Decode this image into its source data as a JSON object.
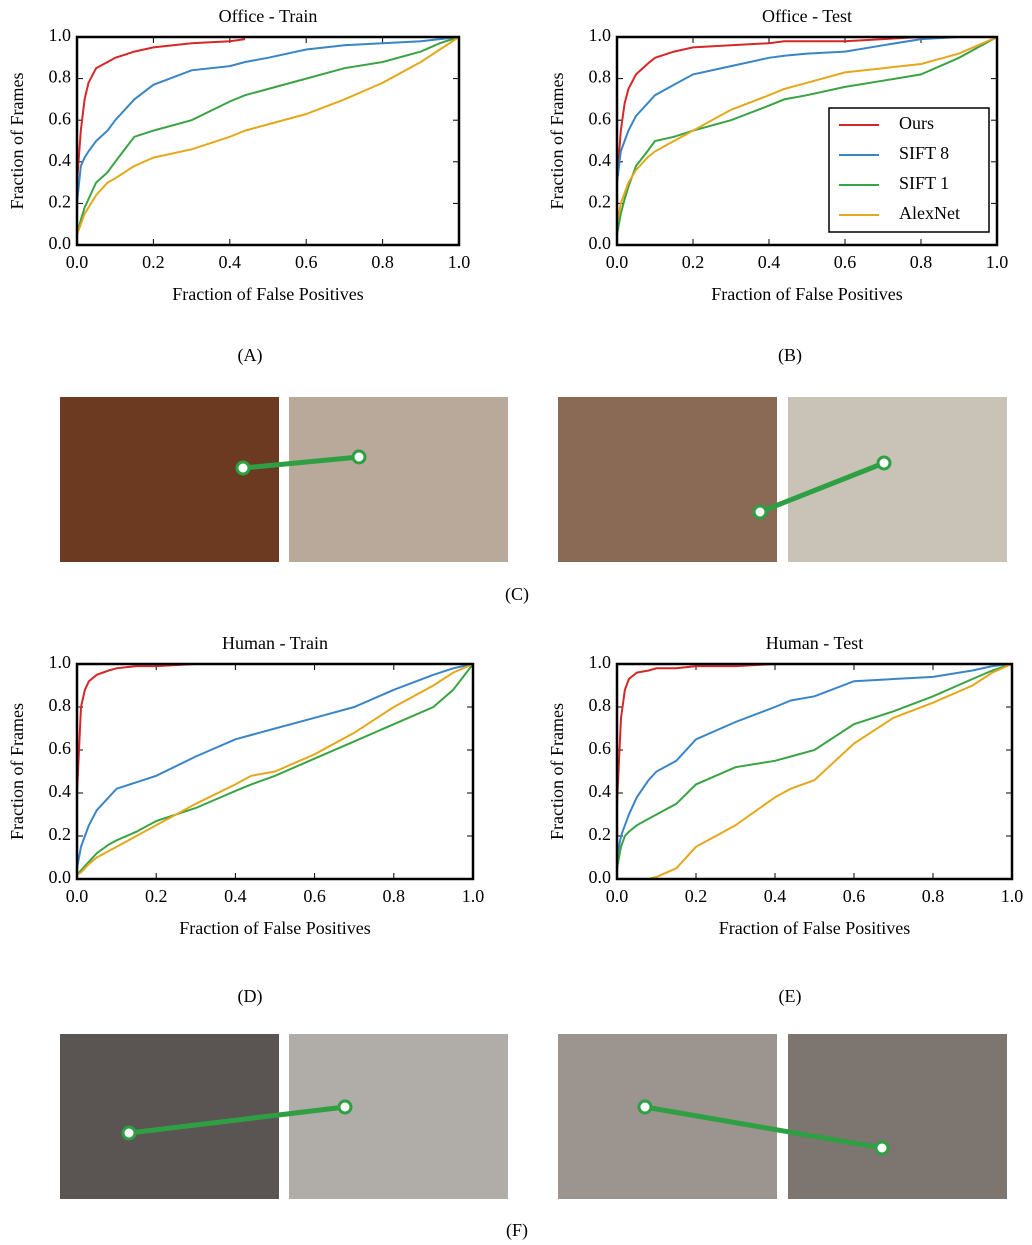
{
  "chart_data": [
    {
      "type": "line",
      "title": "Office - Train",
      "xlabel": "Fraction of False Positives",
      "ylabel": "Fraction of Frames",
      "x": [
        0,
        0.01,
        0.02,
        0.03,
        0.05,
        0.08,
        0.1,
        0.15,
        0.2,
        0.3,
        0.4,
        0.44,
        0.5,
        0.6,
        0.7,
        0.8,
        0.9,
        0.95,
        1.0
      ],
      "series": [
        {
          "color": "#d62728",
          "values": [
            0.3,
            0.55,
            0.7,
            0.78,
            0.85,
            0.88,
            0.9,
            0.93,
            0.95,
            0.97,
            0.98,
            0.99,
            null,
            null,
            null,
            null,
            null,
            null,
            null
          ]
        },
        {
          "color": "#3a85c6",
          "values": [
            0.2,
            0.38,
            0.42,
            0.45,
            0.5,
            0.55,
            0.6,
            0.7,
            0.77,
            0.84,
            0.86,
            0.88,
            0.9,
            0.94,
            0.96,
            0.97,
            0.98,
            0.99,
            1.0
          ]
        },
        {
          "color": "#3aa343",
          "values": [
            0.05,
            0.12,
            0.18,
            0.22,
            0.3,
            0.35,
            0.4,
            0.52,
            0.55,
            0.6,
            0.69,
            0.72,
            0.75,
            0.8,
            0.85,
            0.88,
            0.93,
            0.97,
            1.0
          ]
        },
        {
          "color": "#e3a81c",
          "values": [
            0.05,
            0.1,
            0.15,
            0.18,
            0.24,
            0.3,
            0.32,
            0.38,
            0.42,
            0.46,
            0.52,
            0.55,
            0.58,
            0.63,
            0.7,
            0.78,
            0.88,
            0.94,
            1.0
          ]
        }
      ],
      "xlim": [
        0,
        1
      ],
      "ylim": [
        0,
        1
      ],
      "xticks": [
        {
          "value": 0,
          "label": "0.0"
        },
        {
          "value": 0.2,
          "label": "0.2"
        },
        {
          "value": 0.4,
          "label": "0.4"
        },
        {
          "value": 0.6,
          "label": "0.6"
        },
        {
          "value": 0.8,
          "label": "0.8"
        },
        {
          "value": 1,
          "label": "1.0"
        }
      ],
      "yticks": [
        {
          "value": 0,
          "label": "0.0"
        },
        {
          "value": 0.2,
          "label": "0.2"
        },
        {
          "value": 0.4,
          "label": "0.4"
        },
        {
          "value": 0.6,
          "label": "0.6"
        },
        {
          "value": 0.8,
          "label": "0.8"
        },
        {
          "value": 1,
          "label": "1.0"
        }
      ]
    },
    {
      "type": "line",
      "title": "Office - Test",
      "xlabel": "Fraction of False Positives",
      "ylabel": "Fraction of Frames",
      "legend": "lower right",
      "x": [
        0,
        0.01,
        0.02,
        0.03,
        0.05,
        0.08,
        0.1,
        0.15,
        0.2,
        0.3,
        0.4,
        0.44,
        0.5,
        0.6,
        0.7,
        0.8,
        0.9,
        0.95,
        1.0
      ],
      "series": [
        {
          "name": "Ours",
          "color": "#d62728",
          "values": [
            0.3,
            0.55,
            0.68,
            0.75,
            0.82,
            0.87,
            0.9,
            0.93,
            0.95,
            0.96,
            0.97,
            0.98,
            0.98,
            0.98,
            0.99,
            1.0,
            1.0,
            1.0,
            1.0
          ]
        },
        {
          "name": "SIFT 8",
          "color": "#3a85c6",
          "values": [
            0.3,
            0.45,
            0.5,
            0.55,
            0.62,
            0.68,
            0.72,
            0.77,
            0.82,
            0.86,
            0.9,
            0.91,
            0.92,
            0.93,
            0.96,
            0.99,
            1.0,
            1.0,
            1.0
          ]
        },
        {
          "name": "SIFT 1",
          "color": "#3aa343",
          "values": [
            0.05,
            0.15,
            0.22,
            0.28,
            0.38,
            0.45,
            0.5,
            0.52,
            0.55,
            0.6,
            0.67,
            0.7,
            0.72,
            0.76,
            0.79,
            0.82,
            0.9,
            0.95,
            1.0
          ]
        },
        {
          "name": "AlexNet",
          "color": "#e3a81c",
          "values": [
            0.1,
            0.2,
            0.25,
            0.3,
            0.36,
            0.42,
            0.45,
            0.5,
            0.55,
            0.65,
            0.72,
            0.75,
            0.78,
            0.83,
            0.85,
            0.87,
            0.92,
            0.96,
            1.0
          ]
        }
      ],
      "xlim": [
        0,
        1
      ],
      "ylim": [
        0,
        1
      ],
      "xticks": [
        {
          "value": 0,
          "label": "0.0"
        },
        {
          "value": 0.2,
          "label": "0.2"
        },
        {
          "value": 0.4,
          "label": "0.4"
        },
        {
          "value": 0.6,
          "label": "0.6"
        },
        {
          "value": 0.8,
          "label": "0.8"
        },
        {
          "value": 1,
          "label": "1.0"
        }
      ],
      "yticks": [
        {
          "value": 0,
          "label": "0.0"
        },
        {
          "value": 0.2,
          "label": "0.2"
        },
        {
          "value": 0.4,
          "label": "0.4"
        },
        {
          "value": 0.6,
          "label": "0.6"
        },
        {
          "value": 0.8,
          "label": "0.8"
        },
        {
          "value": 1,
          "label": "1.0"
        }
      ]
    },
    {
      "type": "line",
      "title": "Human - Train",
      "xlabel": "Fraction of False Positives",
      "ylabel": "Fraction of Frames",
      "x": [
        0,
        0.01,
        0.02,
        0.03,
        0.05,
        0.08,
        0.1,
        0.15,
        0.2,
        0.3,
        0.4,
        0.44,
        0.5,
        0.6,
        0.7,
        0.8,
        0.9,
        0.95,
        1.0
      ],
      "series": [
        {
          "color": "#d62728",
          "values": [
            0.4,
            0.8,
            0.88,
            0.92,
            0.95,
            0.97,
            0.98,
            0.99,
            0.99,
            1,
            1,
            1,
            1,
            1,
            1,
            1,
            1,
            1,
            1
          ]
        },
        {
          "color": "#3a85c6",
          "values": [
            0.05,
            0.15,
            0.2,
            0.25,
            0.32,
            0.38,
            0.42,
            0.45,
            0.48,
            0.57,
            0.65,
            0.67,
            0.7,
            0.75,
            0.8,
            0.88,
            0.95,
            0.98,
            1.0
          ]
        },
        {
          "color": "#3aa343",
          "values": [
            0.02,
            0.04,
            0.06,
            0.08,
            0.12,
            0.16,
            0.18,
            0.22,
            0.27,
            0.33,
            0.41,
            0.44,
            0.48,
            0.56,
            0.64,
            0.72,
            0.8,
            0.88,
            1.0
          ]
        },
        {
          "color": "#e3a81c",
          "values": [
            0.02,
            0.03,
            0.05,
            0.07,
            0.1,
            0.13,
            0.15,
            0.2,
            0.25,
            0.35,
            0.44,
            0.48,
            0.5,
            0.58,
            0.68,
            0.8,
            0.9,
            0.96,
            1.0
          ]
        }
      ],
      "xlim": [
        0,
        1
      ],
      "ylim": [
        0,
        1
      ],
      "xticks": [
        {
          "value": 0,
          "label": "0.0"
        },
        {
          "value": 0.2,
          "label": "0.2"
        },
        {
          "value": 0.4,
          "label": "0.4"
        },
        {
          "value": 0.6,
          "label": "0.6"
        },
        {
          "value": 0.8,
          "label": "0.8"
        },
        {
          "value": 1,
          "label": "1.0"
        }
      ],
      "yticks": [
        {
          "value": 0,
          "label": "0.0"
        },
        {
          "value": 0.2,
          "label": "0.2"
        },
        {
          "value": 0.4,
          "label": "0.4"
        },
        {
          "value": 0.6,
          "label": "0.6"
        },
        {
          "value": 0.8,
          "label": "0.8"
        },
        {
          "value": 1,
          "label": "1.0"
        }
      ]
    },
    {
      "type": "line",
      "title": "Human - Test",
      "xlabel": "Fraction of False Positives",
      "ylabel": "Fraction of Frames",
      "x": [
        0,
        0.01,
        0.02,
        0.03,
        0.05,
        0.08,
        0.1,
        0.15,
        0.2,
        0.3,
        0.4,
        0.44,
        0.5,
        0.6,
        0.7,
        0.8,
        0.9,
        0.95,
        1.0
      ],
      "series": [
        {
          "color": "#d62728",
          "values": [
            0.35,
            0.75,
            0.88,
            0.93,
            0.96,
            0.97,
            0.98,
            0.98,
            0.99,
            0.99,
            1,
            1,
            1,
            1,
            1,
            1,
            1,
            1,
            1
          ]
        },
        {
          "color": "#3a85c6",
          "values": [
            0.1,
            0.2,
            0.25,
            0.3,
            0.38,
            0.46,
            0.5,
            0.55,
            0.65,
            0.73,
            0.8,
            0.83,
            0.85,
            0.92,
            0.93,
            0.94,
            0.97,
            0.99,
            1.0
          ]
        },
        {
          "color": "#3aa343",
          "values": [
            0.05,
            0.15,
            0.2,
            0.22,
            0.25,
            0.28,
            0.3,
            0.35,
            0.44,
            0.52,
            0.55,
            0.57,
            0.6,
            0.72,
            0.78,
            0.85,
            0.93,
            0.97,
            1.0
          ]
        },
        {
          "color": "#e3a81c",
          "values": [
            0,
            0,
            0,
            0,
            0,
            0,
            0.01,
            0.05,
            0.15,
            0.25,
            0.38,
            0.42,
            0.46,
            0.63,
            0.75,
            0.82,
            0.9,
            0.96,
            1.0
          ]
        }
      ],
      "xlim": [
        0,
        1
      ],
      "ylim": [
        0,
        1
      ],
      "xticks": [
        {
          "value": 0,
          "label": "0.0"
        },
        {
          "value": 0.2,
          "label": "0.2"
        },
        {
          "value": 0.4,
          "label": "0.4"
        },
        {
          "value": 0.6,
          "label": "0.6"
        },
        {
          "value": 0.8,
          "label": "0.8"
        },
        {
          "value": 1,
          "label": "1.0"
        }
      ],
      "yticks": [
        {
          "value": 0,
          "label": "0.0"
        },
        {
          "value": 0.2,
          "label": "0.2"
        },
        {
          "value": 0.4,
          "label": "0.4"
        },
        {
          "value": 0.6,
          "label": "0.6"
        },
        {
          "value": 0.8,
          "label": "0.8"
        },
        {
          "value": 1,
          "label": "1.0"
        }
      ]
    }
  ],
  "captions": [
    "(A)",
    "(B)",
    "(C)",
    "(D)",
    "(E)",
    "(F)"
  ]
}
